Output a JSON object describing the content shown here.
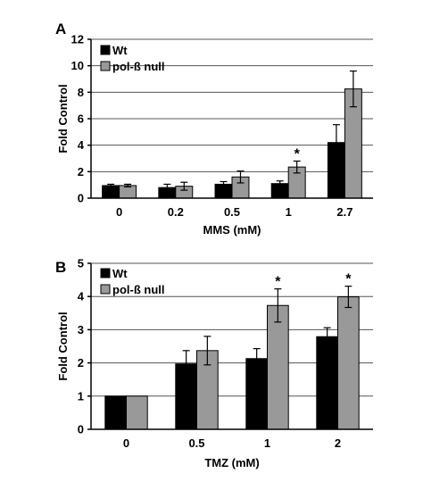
{
  "chart_data": [
    {
      "panel": "A",
      "type": "bar",
      "categories": [
        "0",
        "0.2",
        "0.5",
        "1",
        "2.7"
      ],
      "xlabel": "MMS (mM)",
      "ylabel": "Fold Control",
      "ylim": [
        0,
        12
      ],
      "yticks": [
        "0",
        "2",
        "4",
        "6",
        "8",
        "10",
        "12"
      ],
      "grid": true,
      "legend_position": "top-left",
      "series": [
        {
          "name": "Wt",
          "color": "#000000",
          "values": [
            0.95,
            0.8,
            1.05,
            1.1,
            4.2
          ],
          "errors": [
            0.1,
            0.25,
            0.2,
            0.2,
            1.35
          ]
        },
        {
          "name": "pol-ß null",
          "color": "#999999",
          "values": [
            0.95,
            0.9,
            1.6,
            2.35,
            8.25
          ],
          "errors": [
            0.1,
            0.3,
            0.45,
            0.45,
            1.35
          ]
        }
      ],
      "annotations": [
        {
          "text": "*",
          "category": "1",
          "series": "pol-ß null"
        }
      ]
    },
    {
      "panel": "B",
      "type": "bar",
      "categories": [
        "0",
        "0.5",
        "1",
        "2"
      ],
      "xlabel": "TMZ (mM)",
      "ylabel": "Fold Control",
      "ylim": [
        0,
        5
      ],
      "yticks": [
        "0",
        "1",
        "2",
        "3",
        "4",
        "5"
      ],
      "grid": true,
      "legend_position": "top-left",
      "series": [
        {
          "name": "Wt",
          "color": "#000000",
          "values": [
            1.0,
            1.97,
            2.13,
            2.79
          ],
          "errors": [
            0.0,
            0.4,
            0.3,
            0.27
          ]
        },
        {
          "name": "pol-ß null",
          "color": "#999999",
          "values": [
            1.0,
            2.37,
            3.73,
            3.99
          ],
          "errors": [
            0.0,
            0.43,
            0.5,
            0.32
          ]
        }
      ],
      "annotations": [
        {
          "text": "*",
          "category": "1",
          "series": "pol-ß null"
        },
        {
          "text": "*",
          "category": "2",
          "series": "pol-ß null"
        }
      ]
    }
  ]
}
